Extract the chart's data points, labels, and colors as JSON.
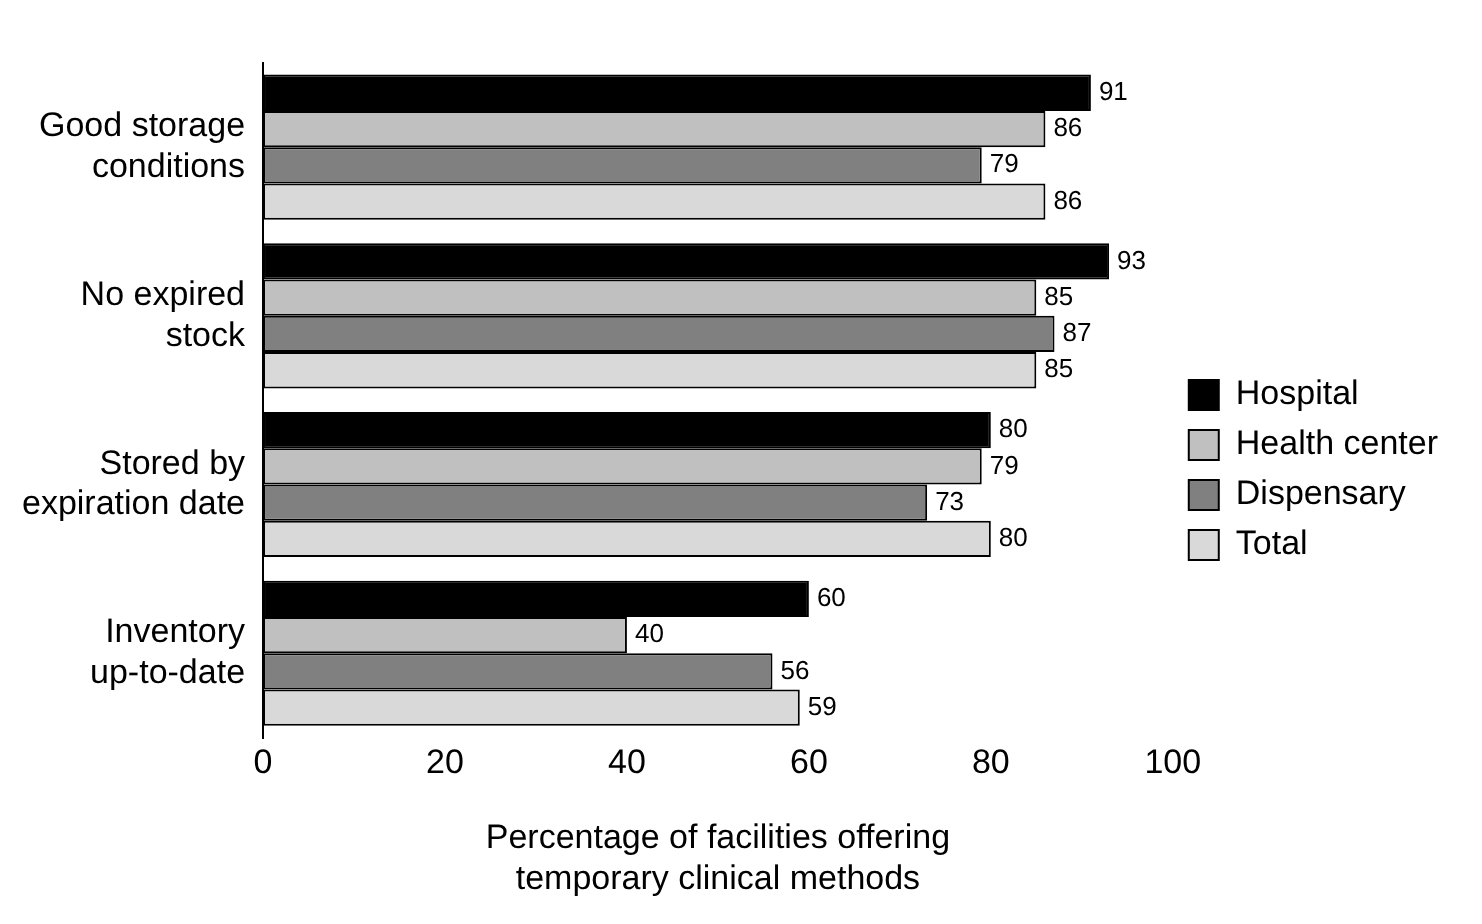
{
  "chart_data": {
    "type": "bar",
    "orientation": "horizontal",
    "xlabel": "Percentage of facilities offering temporary clinical methods",
    "categories": [
      "Good storage conditions",
      "No expired stock",
      "Stored by expiration date",
      "Inventory up-to-date"
    ],
    "series": [
      {
        "name": "Hospital",
        "color": "#000000",
        "values": [
          91,
          93,
          80,
          60
        ]
      },
      {
        "name": "Health center",
        "color": "#c0c0c0",
        "values": [
          86,
          85,
          79,
          40
        ]
      },
      {
        "name": "Dispensary",
        "color": "#808080",
        "values": [
          79,
          87,
          73,
          56
        ]
      },
      {
        "name": "Total",
        "color": "#d9d9d9",
        "values": [
          86,
          85,
          80,
          59
        ]
      }
    ],
    "xlim": [
      0,
      100
    ],
    "xticks": [
      0,
      20,
      40,
      60,
      80,
      100
    ],
    "data_labels": true,
    "grid": false,
    "legend": "right"
  }
}
